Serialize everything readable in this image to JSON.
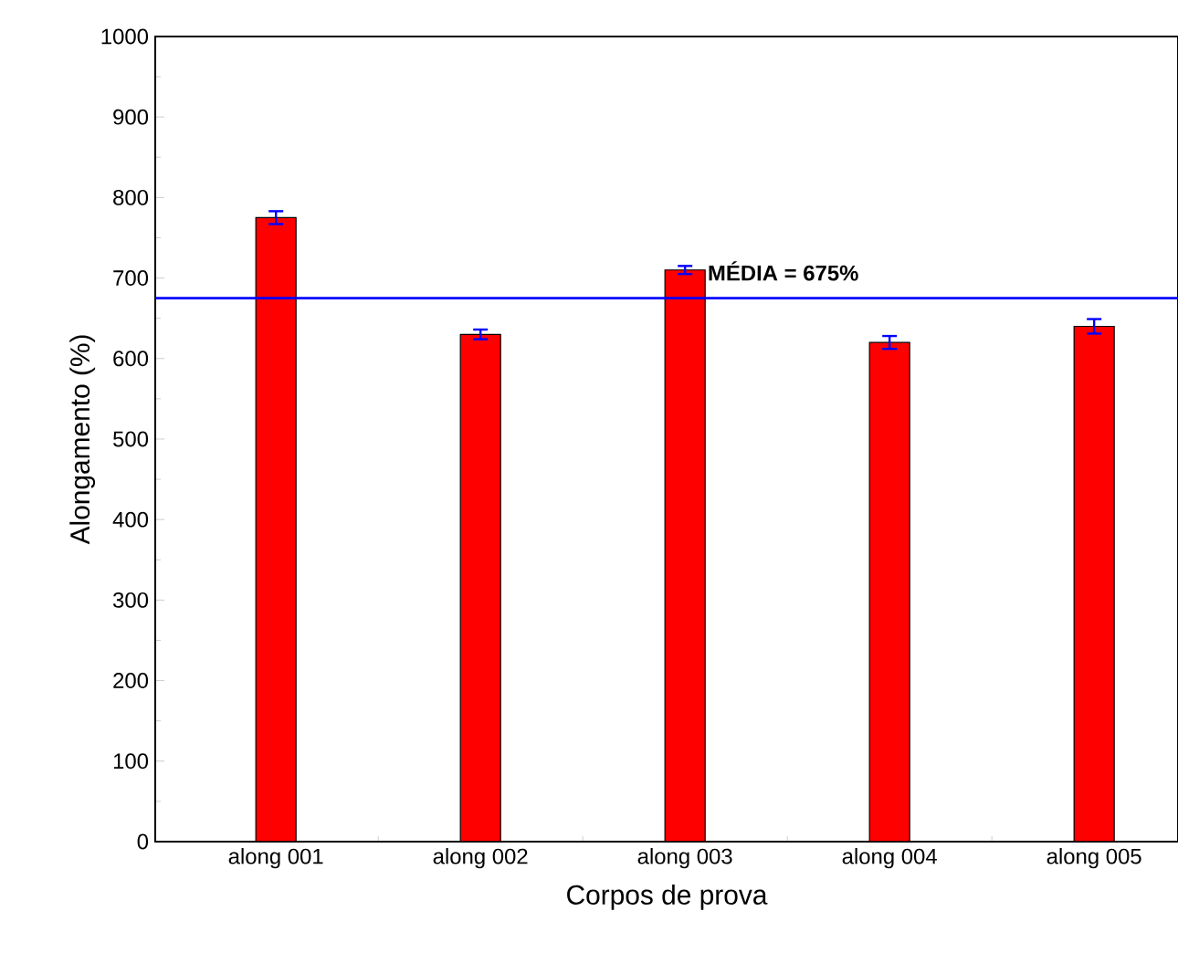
{
  "chart_data": {
    "type": "bar",
    "xlabel": "Corpos de prova",
    "ylabel": "Alongamento (%)",
    "categories": [
      "along 001",
      "along 002",
      "along 003",
      "along 004",
      "along 005"
    ],
    "values": [
      775,
      630,
      710,
      620,
      640
    ],
    "errors": [
      8,
      6,
      5,
      8,
      9
    ],
    "color": "#ff0000",
    "ylim": [
      0,
      1000
    ],
    "yticks": [
      0,
      100,
      200,
      300,
      400,
      500,
      600,
      700,
      800,
      900,
      1000
    ],
    "ref_lines": [
      {
        "axis": "y",
        "value": 675,
        "label": "**MÉDIA = 675%**",
        "color": "#0000ff"
      }
    ]
  }
}
